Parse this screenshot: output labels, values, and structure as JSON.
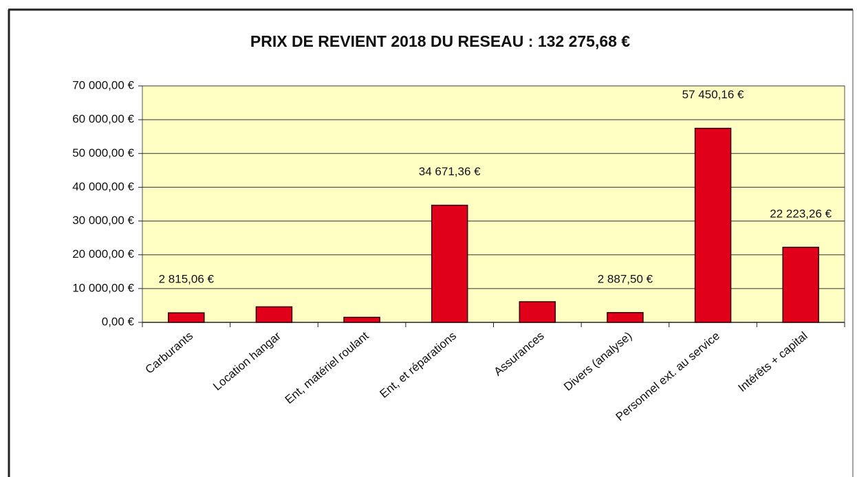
{
  "chart_data": {
    "type": "bar",
    "title": "PRIX DE REVIENT 2018 DU RESEAU :  132 275,68 €",
    "categories": [
      "Carburants",
      "Location hangar",
      "Ent, matériel roulant",
      "Ent, et réparations",
      "Assurances",
      "Divers (analyse)",
      "Personnel ext. au service",
      "Intérêts + capital"
    ],
    "values": [
      2815.06,
      4600,
      1500,
      34671.36,
      6100,
      2887.5,
      57450.16,
      22223.26
    ],
    "value_labels": [
      "2 815,06 €",
      null,
      null,
      "34 671,36 €",
      null,
      "2 887,50 €",
      "57 450,16 €",
      "22 223,26 €"
    ],
    "color": "#e0001a",
    "ylim": [
      0,
      70000
    ],
    "yticks": [
      {
        "value": 0,
        "label": "0,00 €"
      },
      {
        "value": 10000,
        "label": "10 000,00 €"
      },
      {
        "value": 20000,
        "label": "20 000,00 €"
      },
      {
        "value": 30000,
        "label": "30 000,00 €"
      },
      {
        "value": 40000,
        "label": "40 000,00 €"
      },
      {
        "value": 50000,
        "label": "50 000,00 €"
      },
      {
        "value": 60000,
        "label": "60 000,00 €"
      },
      {
        "value": 70000,
        "label": "70 000,00 €"
      }
    ],
    "grid": true
  }
}
